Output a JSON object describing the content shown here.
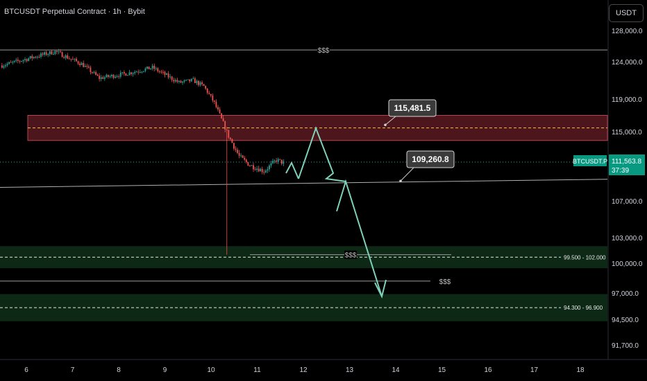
{
  "header": {
    "title": "BTCUSDT Perpetual Contract · 1h · Bybit",
    "currency_button": "USDT"
  },
  "colors": {
    "background": "#000000",
    "up_candle": "#26a69a",
    "down_candle": "#ef5350",
    "projection": "#7fd1b9",
    "resistance_zone": "#5a1a22",
    "demand_zone": "#0f2a17",
    "axis_text": "#d1d4dc",
    "current_price_bg": "#089981"
  },
  "chart_data": {
    "type": "candlestick",
    "x_tick_labels": [
      "6",
      "7",
      "8",
      "9",
      "10",
      "11",
      "12",
      "13",
      "14",
      "15",
      "16",
      "17",
      "18"
    ],
    "y_tick_labels": [
      "128,000.0",
      "124,000.0",
      "119,000.0",
      "115,000.0",
      "107,000.0",
      "103,000.0",
      "100,000.0",
      "97,000.0",
      "94,500.0",
      "91,700.0"
    ],
    "current_price": {
      "symbol": "BTCUSDT.P",
      "price": "111,563.8",
      "countdown": "37:39"
    },
    "callouts": [
      {
        "label": "115,481.5",
        "value": 115481.5
      },
      {
        "label": "109,260.8",
        "value": 109260.8
      }
    ],
    "liquidity_lines": [
      {
        "label": "$$$",
        "value": 125500
      },
      {
        "label": "$$$",
        "value": 101000
      },
      {
        "label": "$$$",
        "value": 98200
      }
    ],
    "zones": [
      {
        "kind": "supply",
        "from": 114000,
        "to": 117000
      },
      {
        "kind": "demand",
        "label": "99.500 - 102.000",
        "from": 99500,
        "to": 102000
      },
      {
        "kind": "demand",
        "label": "94.300 - 96.900",
        "from": 94300,
        "to": 96900
      }
    ],
    "trend_line": {
      "from": 109000,
      "to": 109300
    },
    "projection_path": [
      {
        "day": 12.3,
        "price": 115000
      },
      {
        "day": 12.55,
        "price": 109000
      },
      {
        "day": 12.75,
        "price": 106000
      },
      {
        "day": 13.4,
        "price": 96700
      }
    ]
  }
}
